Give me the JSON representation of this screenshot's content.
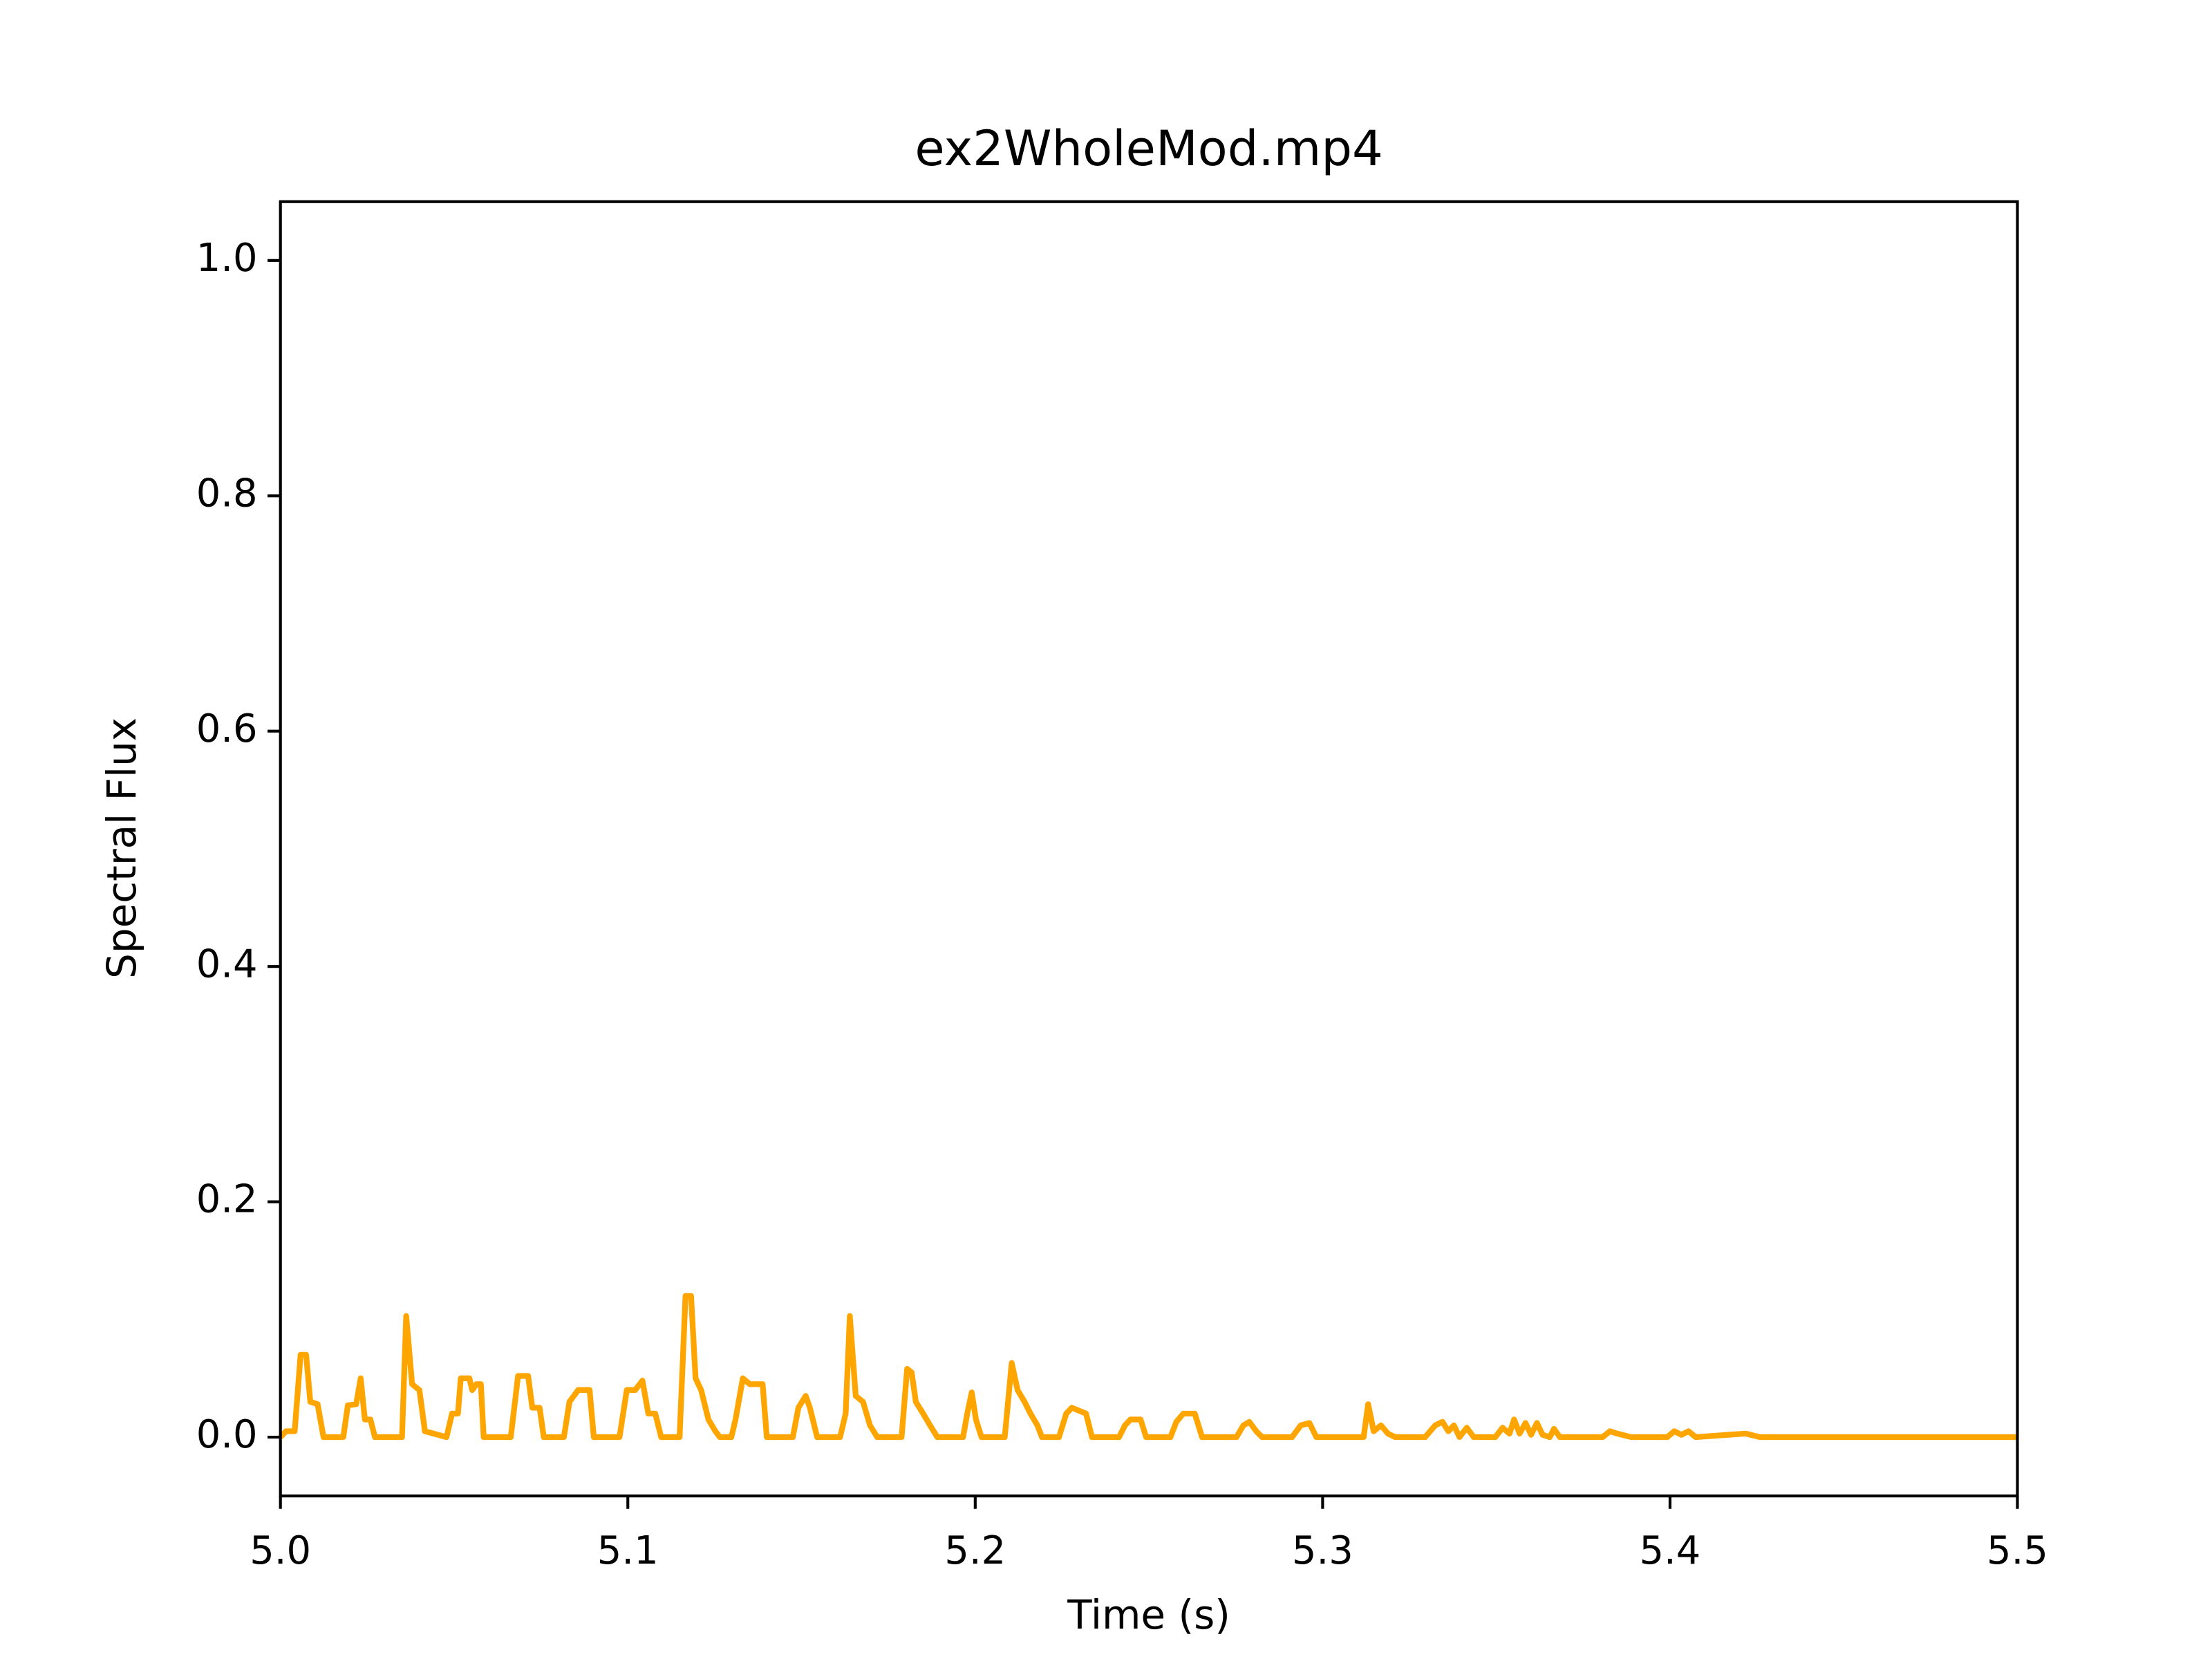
{
  "chart_data": {
    "type": "line",
    "title": "ex2WholeMod.mp4",
    "x_label": "Time (s)",
    "y_label": "Spectral Flux",
    "xlim": [
      5.0,
      5.5
    ],
    "ylim": [
      -0.05,
      1.05
    ],
    "xticks": [
      {
        "value": 5.0,
        "label": "5.0"
      },
      5.1,
      5.2,
      5.3,
      5.4,
      5.5
    ],
    "yticks": [
      {
        "value": 0,
        "label": "0.0"
      },
      0.2,
      0.4,
      0.6,
      0.8,
      {
        "value": 1,
        "label": "1.0"
      }
    ],
    "grid": false,
    "series": [
      {
        "color": "#ffa500",
        "x": [
          5.0,
          5.0016,
          5.0041,
          5.0058,
          5.0074,
          5.0086,
          5.0107,
          5.0124,
          5.0181,
          5.0194,
          5.0218,
          5.0231,
          5.0243,
          5.0259,
          5.0272,
          5.035,
          5.0362,
          5.0379,
          5.04,
          5.0416,
          5.0478,
          5.0494,
          5.0511,
          5.0519,
          5.0544,
          5.0552,
          5.0564,
          5.0577,
          5.0585,
          5.0663,
          5.0684,
          5.0713,
          5.0725,
          5.0746,
          5.0758,
          5.0816,
          5.0832,
          5.0857,
          5.089,
          5.0902,
          5.0976,
          5.0997,
          5.1021,
          5.1042,
          5.1059,
          5.1079,
          5.1096,
          5.1149,
          5.1166,
          5.1182,
          5.1195,
          5.1211,
          5.1232,
          5.1252,
          5.1265,
          5.1298,
          5.131,
          5.1331,
          5.1351,
          5.1388,
          5.14,
          5.1475,
          5.1491,
          5.1512,
          5.1524,
          5.1545,
          5.1611,
          5.1627,
          5.1639,
          5.1656,
          5.1677,
          5.1697,
          5.1718,
          5.1788,
          5.1804,
          5.1817,
          5.1829,
          5.185,
          5.187,
          5.1891,
          5.1965,
          5.1977,
          5.199,
          5.2002,
          5.2018,
          5.2085,
          5.2105,
          5.2122,
          5.2142,
          5.2159,
          5.2179,
          5.2192,
          5.2241,
          5.2262,
          5.2278,
          5.2319,
          5.2336,
          5.2414,
          5.2431,
          5.2447,
          5.2476,
          5.2492,
          5.2562,
          5.2579,
          5.2599,
          5.2632,
          5.2653,
          5.2752,
          5.2772,
          5.2789,
          5.2809,
          5.2826,
          5.2912,
          5.2937,
          5.2962,
          5.2982,
          5.3118,
          5.3131,
          5.3147,
          5.3168,
          5.3188,
          5.3209,
          5.3295,
          5.3324,
          5.3345,
          5.3362,
          5.3378,
          5.3394,
          5.3415,
          5.3435,
          5.3497,
          5.3518,
          5.3538,
          5.3551,
          5.3567,
          5.3584,
          5.36,
          5.3617,
          5.3633,
          5.3654,
          5.3666,
          5.3683,
          5.3806,
          5.3827,
          5.3848,
          5.3888,
          5.3992,
          5.4012,
          5.4033,
          5.4053,
          5.4074,
          5.4218,
          5.4259,
          5.4548,
          5.5
        ],
        "values": [
          0.0,
          0.005,
          0.005,
          0.07,
          0.07,
          0.03,
          0.028,
          0.0,
          0.0,
          0.027,
          0.028,
          0.05,
          0.015,
          0.015,
          0.0,
          0.0,
          0.103,
          0.045,
          0.04,
          0.005,
          0.0,
          0.02,
          0.02,
          0.05,
          0.05,
          0.04,
          0.045,
          0.045,
          0.0,
          0.0,
          0.052,
          0.052,
          0.025,
          0.025,
          0.0,
          0.0,
          0.03,
          0.04,
          0.04,
          0.0,
          0.0,
          0.04,
          0.04,
          0.048,
          0.02,
          0.02,
          0.0,
          0.0,
          0.12,
          0.12,
          0.05,
          0.04,
          0.015,
          0.005,
          0.0,
          0.0,
          0.015,
          0.05,
          0.045,
          0.045,
          0.0,
          0.0,
          0.025,
          0.035,
          0.025,
          0.0,
          0.0,
          0.02,
          0.103,
          0.035,
          0.03,
          0.01,
          0.0,
          0.0,
          0.058,
          0.055,
          0.03,
          0.02,
          0.01,
          0.0,
          0.0,
          0.02,
          0.038,
          0.015,
          0.0,
          0.0,
          0.063,
          0.04,
          0.03,
          0.02,
          0.01,
          0.0,
          0.0,
          0.02,
          0.025,
          0.02,
          0.0,
          0.0,
          0.01,
          0.015,
          0.015,
          0.0,
          0.0,
          0.013,
          0.02,
          0.02,
          0.0,
          0.0,
          0.01,
          0.013,
          0.005,
          0.0,
          0.0,
          0.01,
          0.012,
          0.0,
          0.0,
          0.028,
          0.005,
          0.01,
          0.003,
          0.0,
          0.0,
          0.01,
          0.013,
          0.005,
          0.01,
          0.0,
          0.008,
          0.0,
          0.0,
          0.008,
          0.003,
          0.015,
          0.003,
          0.012,
          0.002,
          0.012,
          0.002,
          0.0,
          0.007,
          0.0,
          0.0,
          0.005,
          0.003,
          0.0,
          0.0,
          0.005,
          0.002,
          0.005,
          0.0,
          0.003,
          0.0,
          0.0,
          0.0
        ]
      }
    ]
  }
}
